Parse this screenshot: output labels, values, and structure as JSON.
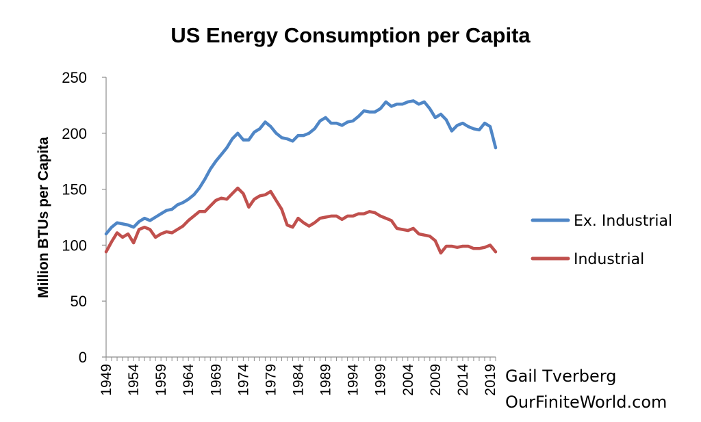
{
  "credit": {
    "author": "Gail Tverberg",
    "site": "OurFiniteWorld.com"
  },
  "chart_data": {
    "type": "line",
    "title": "US Energy Consumption per Capita",
    "xlabel": "",
    "ylabel": "Million BTUs per Capita",
    "ylim": [
      0,
      250
    ],
    "yticks": [
      0,
      50,
      100,
      150,
      200,
      250
    ],
    "grid": false,
    "legend_position": "right",
    "x": [
      1949,
      1950,
      1951,
      1952,
      1953,
      1954,
      1955,
      1956,
      1957,
      1958,
      1959,
      1960,
      1961,
      1962,
      1963,
      1964,
      1965,
      1966,
      1967,
      1968,
      1969,
      1970,
      1971,
      1972,
      1973,
      1974,
      1975,
      1976,
      1977,
      1978,
      1979,
      1980,
      1981,
      1982,
      1983,
      1984,
      1985,
      1986,
      1987,
      1988,
      1989,
      1990,
      1991,
      1992,
      1993,
      1994,
      1995,
      1996,
      1997,
      1998,
      1999,
      2000,
      2001,
      2002,
      2003,
      2004,
      2005,
      2006,
      2007,
      2008,
      2009,
      2010,
      2011,
      2012,
      2013,
      2014,
      2015,
      2016,
      2017,
      2018,
      2019,
      2020
    ],
    "xtick_labels": [
      "1949",
      "1954",
      "1959",
      "1964",
      "1969",
      "1974",
      "1979",
      "1984",
      "1989",
      "1994",
      "1999",
      "2004",
      "2009",
      "2014",
      "2019"
    ],
    "series": [
      {
        "name": "Ex. Industrial",
        "color": "#4f86c6",
        "values": [
          110,
          116,
          120,
          119,
          118,
          116,
          121,
          124,
          122,
          125,
          128,
          131,
          132,
          136,
          138,
          141,
          145,
          151,
          159,
          168,
          175,
          181,
          187,
          195,
          200,
          194,
          194,
          201,
          204,
          210,
          206,
          200,
          196,
          195,
          193,
          198,
          198,
          200,
          204,
          211,
          214,
          209,
          209,
          207,
          210,
          211,
          215,
          220,
          219,
          219,
          222,
          228,
          224,
          226,
          226,
          228,
          229,
          226,
          228,
          222,
          214,
          217,
          212,
          202,
          207,
          209,
          206,
          204,
          203,
          209,
          206,
          187
        ]
      },
      {
        "name": "Industrial",
        "color": "#c0504d",
        "values": [
          94,
          103,
          111,
          107,
          110,
          102,
          114,
          116,
          114,
          107,
          110,
          112,
          111,
          114,
          117,
          122,
          126,
          130,
          130,
          135,
          140,
          142,
          141,
          146,
          151,
          146,
          134,
          141,
          144,
          145,
          148,
          140,
          132,
          118,
          116,
          124,
          120,
          117,
          120,
          124,
          125,
          126,
          126,
          123,
          126,
          126,
          128,
          128,
          130,
          129,
          126,
          124,
          122,
          115,
          114,
          113,
          115,
          110,
          109,
          108,
          104,
          93,
          99,
          99,
          98,
          99,
          99,
          97,
          97,
          98,
          100,
          94
        ]
      }
    ]
  }
}
